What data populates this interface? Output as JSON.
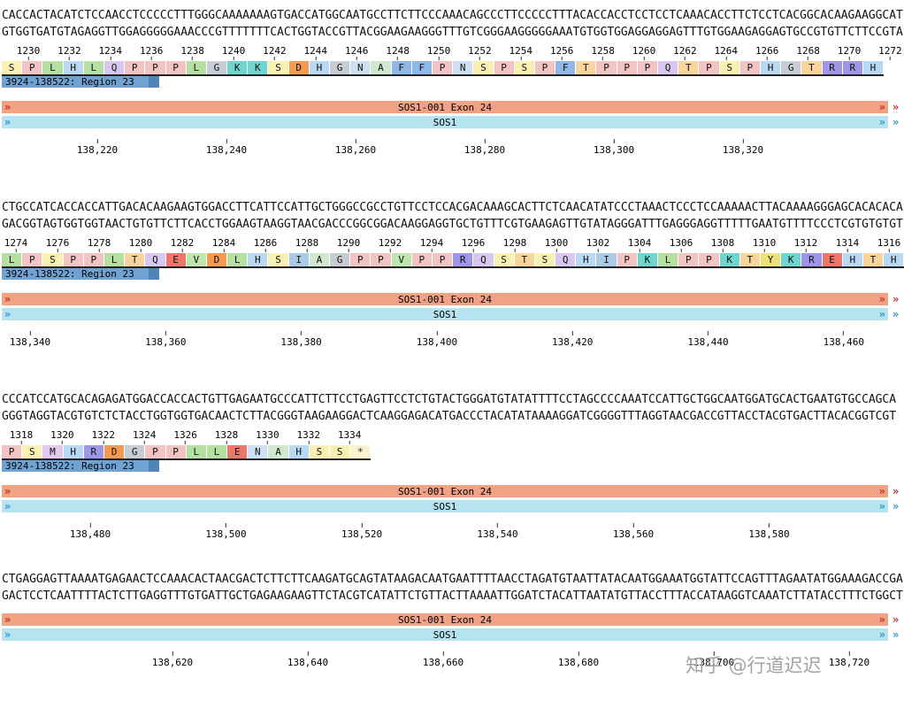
{
  "tracks": {
    "exon_label": "SOS1-001 Exon 24",
    "gene_label": "SOS1",
    "region_label": "3924-138522: Region 23",
    "chevron_icon": "»"
  },
  "watermark": "知乎 @行道迟迟",
  "colors": {
    "exon_bar": "#f1a184",
    "exon_chevron": "#c22c18",
    "gene_bar": "#b5e3f0",
    "gene_chevron": "#2a93c9",
    "region_bar": "#6fa3d3"
  },
  "aa_colors": {
    "A": "#cfe8cf",
    "D": "#f59b51",
    "E": "#f0766b",
    "F": "#8fb8e8",
    "G": "#c8ccd4",
    "H": "#b9d9f2",
    "I": "#aacbe3",
    "K": "#6fd6cf",
    "L": "#b5e0a2",
    "M": "#e3c9ee",
    "N": "#cfe0f5",
    "P": "#f2c4c4",
    "Q": "#d8c8f0",
    "R": "#9f96e8",
    "S": "#fbf0b4",
    "T": "#f7d59c",
    "V": "#bfe6ad",
    "Y": "#ece27a",
    "*": "#fdf4cf"
  },
  "blocks": [
    {
      "dna_top": "CACCACTACATCTCCAACCTCCCCCTTTGGGCAAAAAAAGTGACCATGGCAATGCCTTCTTCCCAAACAGCCCTTCCCCCTTTACACCACCTCCTCCTCAAACACCTTCTCCTCACGGCACAAGAAGGCAT",
      "dna_bottom": "GTGGTGATGTAGAGGTTGGAGGGGGAAACCCGTTTTTTTCACTGGTACCGTTACGGAAGAAGGGTTTGTCGGGAAGGGGGAAATGTGGTGGAGGAGGAGTTTGTGGAAGAGGAGTGCCGTGTTCTTCCGTA",
      "aa_numbers": [
        "1230",
        "1232",
        "1234",
        "1236",
        "1238",
        "1240",
        "1242",
        "1244",
        "1246",
        "1248",
        "1250",
        "1252",
        "1254",
        "1256",
        "1258",
        "1260",
        "1262",
        "1264",
        "1266",
        "1268",
        "1270",
        "1272"
      ],
      "aa": [
        "S",
        "P",
        "L",
        "H",
        "L",
        "Q",
        "P",
        "P",
        "P",
        "L",
        "G",
        "K",
        "K",
        "S",
        "D",
        "H",
        "G",
        "N",
        "A",
        "F",
        "F",
        "P",
        "N",
        "S",
        "P",
        "S",
        "P",
        "F",
        "T",
        "P",
        "P",
        "P",
        "Q",
        "T",
        "P",
        "S",
        "P",
        "H",
        "G",
        "T",
        "R",
        "R",
        "H"
      ],
      "coords": [
        "138,220",
        "138,240",
        "138,260",
        "138,280",
        "138,300",
        "138,320"
      ]
    },
    {
      "dna_top": "CTGCCATCACCACCATTGACACAAGAAGTGGACCTTCATTCCATTGCTGGGCCGCCTGTTCCTCCACGACAAAGCACTTCTCAACATATCCCTAAACTCCCTCCAAAAACTTACAAAAGGGAGCACACACA",
      "dna_bottom": "GACGGTAGTGGTGGTAACTGTGTTCTTCACCTGGAAGTAAGGTAACGACCCGGCGGACAAGGAGGTGCTGTTTCGTGAAGAGTTGTATAGGGATTTGAGGGAGGTTTTTGAATGTTTTCCCTCGTGTGTGT",
      "aa_numbers": [
        "1274",
        "1276",
        "1278",
        "1280",
        "1282",
        "1284",
        "1286",
        "1288",
        "1290",
        "1292",
        "1294",
        "1296",
        "1298",
        "1300",
        "1302",
        "1304",
        "1306",
        "1308",
        "1310",
        "1312",
        "1314",
        "1316"
      ],
      "aa": [
        "L",
        "P",
        "S",
        "P",
        "P",
        "L",
        "T",
        "Q",
        "E",
        "V",
        "D",
        "L",
        "H",
        "S",
        "I",
        "A",
        "G",
        "P",
        "P",
        "V",
        "P",
        "P",
        "R",
        "Q",
        "S",
        "T",
        "S",
        "Q",
        "H",
        "I",
        "P",
        "K",
        "L",
        "P",
        "P",
        "K",
        "T",
        "Y",
        "K",
        "R",
        "E",
        "H",
        "T",
        "H"
      ],
      "coords": [
        "138,340",
        "138,360",
        "138,380",
        "138,400",
        "138,420",
        "138,440",
        "138,460"
      ]
    },
    {
      "dna_top": "CCCATCCATGCACAGAGATGGACCACCACTGTTGAGAATGCCCATTCTTCCTGAGTTCCTCTGTACTGGGATGTATATTTTCCTAGCCCCAAATCCATTGCTGGCAATGGATGCACTGAATGTGCCAGCA",
      "dna_bottom": "GGGTAGGTACGTGTCTCTACCTGGTGGTGACAACTCTTACGGGTAAGAAGGACTCAAGGAGACATGACCCTACATATAAAAGGATCGGGGTTTAGGTAACGACCGTTACCTACGTGACTTACACGGTCGT",
      "aa_numbers": [
        "1318",
        "1320",
        "1322",
        "1324",
        "1326",
        "1328",
        "1330",
        "1332",
        "1334"
      ],
      "aa": [
        "P",
        "S",
        "M",
        "H",
        "R",
        "D",
        "G",
        "P",
        "P",
        "L",
        "L",
        "E",
        "N",
        "A",
        "H",
        "S",
        "S",
        "*"
      ],
      "coords": [
        "138,480",
        "138,500",
        "138,520",
        "138,540",
        "138,560",
        "138,580"
      ]
    },
    {
      "dna_top": "CTGAGGAGTTAAAATGAGAACTCCAAACACTAACGACTCTTCTTCAAGATGCAGTATAAGACAATGAATTTTAACCTAGATGTAATTATACAATGGAAATGGTATTCCAGTTTAGAATATGGAAAGACCGA",
      "dna_bottom": "GACTCCTCAATTTTACTCTTGAGGTTTGTGATTGCTGAGAAGAAGTTCTACGTCATATTCTGTTACTTAAAATTGGATCTACATTAATATGTTACCTTTACCATAAGGTCAAATCTTATACCTTTCTGGCT",
      "coords": [
        "138,620",
        "138,640",
        "138,660",
        "138,680",
        "138,700",
        "138,720"
      ]
    }
  ]
}
